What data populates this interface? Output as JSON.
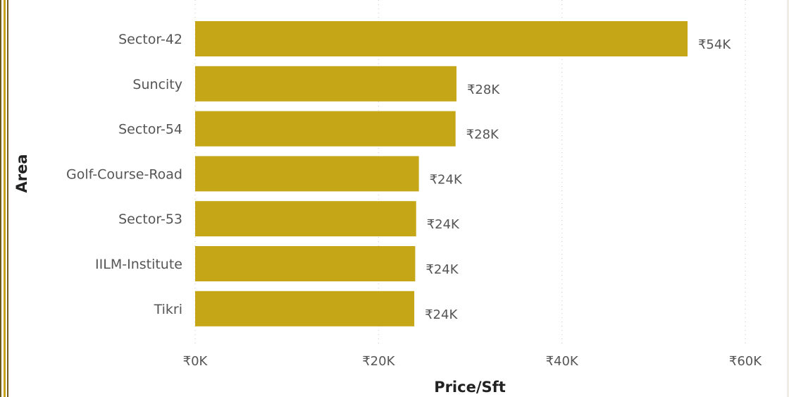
{
  "chart_data": {
    "type": "bar",
    "orientation": "horizontal",
    "categories": [
      "Sector-42",
      "Suncity",
      "Sector-54",
      "Golf-Course-Road",
      "Sector-53",
      "IILM-Institute",
      "Tikri"
    ],
    "values": [
      53700,
      28500,
      28400,
      24400,
      24100,
      24000,
      23900
    ],
    "data_labels": [
      "₹54K",
      "₹28K",
      "₹28K",
      "₹24K",
      "₹24K",
      "₹24K",
      "₹24K"
    ],
    "xlabel": "Price/Sft",
    "ylabel": "Area",
    "xlim": [
      0,
      60000
    ],
    "x_ticks": [
      0,
      20000,
      40000,
      60000
    ],
    "x_tick_labels": [
      "₹0K",
      "₹20K",
      "₹40K",
      "₹60K"
    ],
    "bar_color": "#c4a617",
    "grid": "vertical-dotted"
  }
}
